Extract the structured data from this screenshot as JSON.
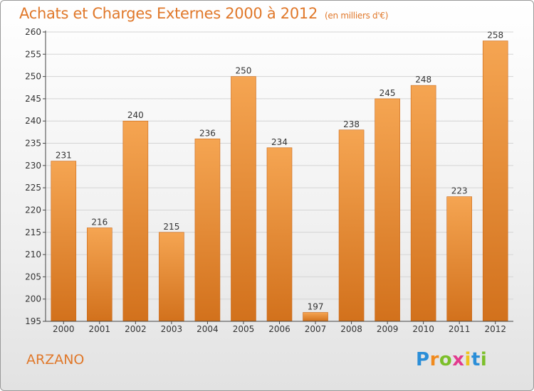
{
  "title": "Achats et Charges Externes 2000 à 2012",
  "unit": "(en milliers d'€)",
  "commune": "ARZANO",
  "brand": {
    "letters": [
      "P",
      "r",
      "o",
      "x",
      "i",
      "t",
      "i"
    ],
    "colors": [
      "#2a8ed8",
      "#f08a1e",
      "#7cbf2a",
      "#e23a8e",
      "#f0c21e",
      "#2a8ed8",
      "#7cbf2a"
    ]
  },
  "colors": {
    "bar_top": "#f5a552",
    "bar_bottom": "#d2711c",
    "title": "#e0782a",
    "axis": "#444444"
  },
  "chart_data": {
    "type": "bar",
    "title": "Achats et Charges Externes 2000 à 2012",
    "subtitle": "(en milliers d'€)",
    "xlabel": "",
    "ylabel": "",
    "categories": [
      "2000",
      "2001",
      "2002",
      "2003",
      "2004",
      "2005",
      "2006",
      "2007",
      "2008",
      "2009",
      "2010",
      "2011",
      "2012"
    ],
    "values": [
      231,
      216,
      240,
      215,
      236,
      250,
      234,
      197,
      238,
      245,
      248,
      223,
      258
    ],
    "ylim": [
      195,
      260
    ],
    "yticks": [
      195,
      200,
      205,
      210,
      215,
      220,
      225,
      230,
      235,
      240,
      245,
      250,
      255,
      260
    ],
    "grid": true,
    "data_labels": true
  }
}
